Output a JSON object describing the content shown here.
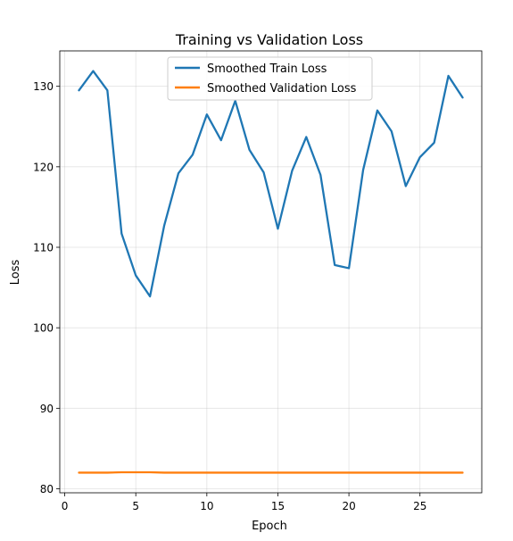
{
  "chart_data": {
    "type": "line",
    "title": "Training vs Validation Loss",
    "xlabel": "Epoch",
    "ylabel": "Loss",
    "xlim": [
      -0.35,
      29.35
    ],
    "ylim": [
      79.5,
      134.4
    ],
    "xticks": [
      0,
      5,
      10,
      15,
      20,
      25
    ],
    "yticks": [
      80,
      90,
      100,
      110,
      120,
      130
    ],
    "grid": true,
    "legend_position": "top-center",
    "x": [
      1,
      2,
      3,
      4,
      5,
      6,
      7,
      8,
      9,
      10,
      11,
      12,
      13,
      14,
      15,
      16,
      17,
      18,
      19,
      20,
      21,
      22,
      23,
      24,
      25,
      26,
      27,
      28
    ],
    "series": [
      {
        "name": "Smoothed Train Loss",
        "color": "#1f77b4",
        "values": [
          129.5,
          131.9,
          129.5,
          111.7,
          106.5,
          103.9,
          112.7,
          119.2,
          121.5,
          126.5,
          123.3,
          128.2,
          122.1,
          119.3,
          112.3,
          119.5,
          123.7,
          119.0,
          107.8,
          107.4,
          119.6,
          127.0,
          124.4,
          117.6,
          121.2,
          123.0,
          131.3,
          128.6
        ]
      },
      {
        "name": "Smoothed Validation Loss",
        "color": "#ff7f0e",
        "values": [
          82.0,
          82.0,
          82.0,
          82.05,
          82.05,
          82.05,
          82.0,
          82.0,
          82.0,
          82.0,
          82.0,
          82.0,
          82.0,
          82.0,
          82.0,
          82.0,
          82.0,
          82.0,
          82.0,
          82.0,
          82.0,
          82.0,
          82.0,
          82.0,
          82.0,
          82.0,
          82.0,
          82.0
        ]
      }
    ]
  }
}
